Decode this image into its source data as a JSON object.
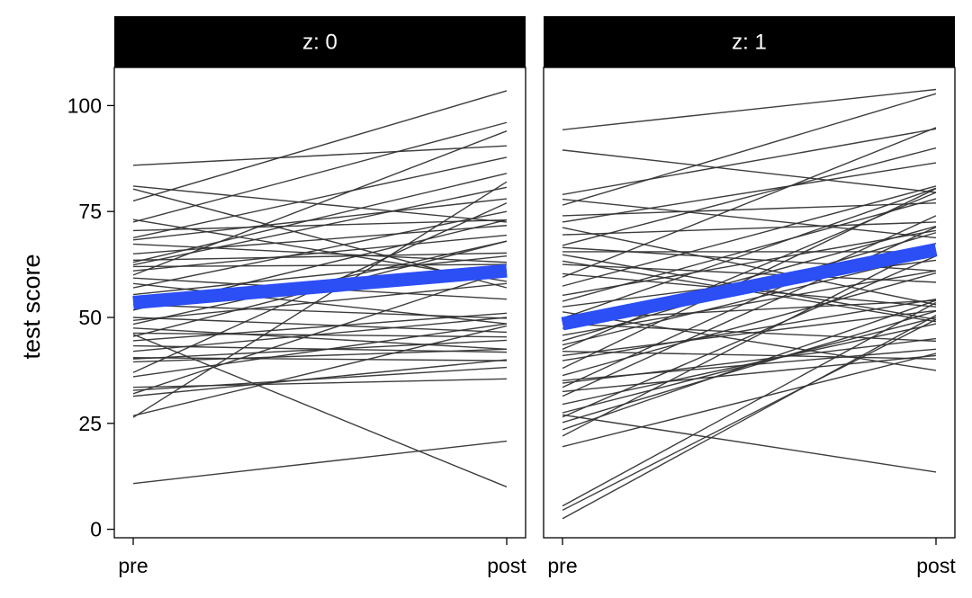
{
  "chart_data": {
    "type": "line",
    "ylabel": "test score",
    "xlabel": "",
    "x_categories": [
      "pre",
      "post"
    ],
    "ylim": [
      -2,
      109
    ],
    "yticks": [
      0,
      25,
      50,
      75,
      100
    ],
    "ytick_labels": [
      "0",
      "25",
      "50",
      "75",
      "100"
    ],
    "grid": false,
    "legend": "none",
    "colors": {
      "individual_line": "#333333",
      "mean_line": "#2B4EF5",
      "strip_bg": "#000000",
      "strip_text": "#FFFFFF"
    },
    "panels": [
      {
        "label": "z: 0",
        "mean_line": {
          "pre": 53.5,
          "post": 61
        },
        "individual_lines": [
          [
            85.9,
            90.5
          ],
          [
            81,
            72.5
          ],
          [
            80.3,
            57
          ],
          [
            77.5,
            103.5
          ],
          [
            73.1,
            58.5
          ],
          [
            72.5,
            96
          ],
          [
            70.5,
            73
          ],
          [
            68.8,
            87.8
          ],
          [
            68.3,
            78
          ],
          [
            67.3,
            63
          ],
          [
            65,
            71.7
          ],
          [
            63.5,
            65.2
          ],
          [
            63,
            84
          ],
          [
            62.4,
            80.7
          ],
          [
            62,
            62.5
          ],
          [
            61,
            69.4
          ],
          [
            60,
            94
          ],
          [
            59.3,
            54.3
          ],
          [
            58,
            48.5
          ],
          [
            57,
            75
          ],
          [
            55.4,
            64.5
          ],
          [
            54,
            60
          ],
          [
            53,
            49.8
          ],
          [
            51.7,
            73
          ],
          [
            50,
            46.5
          ],
          [
            49.3,
            58
          ],
          [
            48.4,
            68
          ],
          [
            47.5,
            42.5
          ],
          [
            46.3,
            45.4
          ],
          [
            46,
            10
          ],
          [
            45.5,
            68
          ],
          [
            44.5,
            51
          ],
          [
            43.3,
            41.8
          ],
          [
            42,
            50
          ],
          [
            40.5,
            39.8
          ],
          [
            40.2,
            44.6
          ],
          [
            39.5,
            42.5
          ],
          [
            37,
            77
          ],
          [
            36,
            48.5
          ],
          [
            33.5,
            35.5
          ],
          [
            32.8,
            38.2
          ],
          [
            32,
            61
          ],
          [
            31.4,
            40
          ],
          [
            26.8,
            48
          ],
          [
            26.4,
            82
          ],
          [
            10.8,
            20.8
          ]
        ]
      },
      {
        "label": "z: 1",
        "mean_line": {
          "pre": 48.5,
          "post": 66
        },
        "individual_lines": [
          [
            94.3,
            103.8
          ],
          [
            89.5,
            79.5
          ],
          [
            79,
            94.5
          ],
          [
            77.9,
            68.8
          ],
          [
            76.5,
            102.8
          ],
          [
            74,
            77
          ],
          [
            72.5,
            86.5
          ],
          [
            71.2,
            53
          ],
          [
            69.5,
            72.5
          ],
          [
            67,
            90
          ],
          [
            66.5,
            61
          ],
          [
            65.5,
            65.5
          ],
          [
            64.8,
            49.5
          ],
          [
            63.3,
            49
          ],
          [
            62.5,
            58.3
          ],
          [
            60.3,
            52.5
          ],
          [
            59.5,
            94.8
          ],
          [
            57.4,
            81
          ],
          [
            55.2,
            70.5
          ],
          [
            53.8,
            78
          ],
          [
            52.5,
            63.5
          ],
          [
            51.3,
            37.5
          ],
          [
            49.8,
            80.5
          ],
          [
            49.5,
            54
          ],
          [
            48.5,
            44.4
          ],
          [
            47.4,
            71.5
          ],
          [
            45.8,
            61
          ],
          [
            44.5,
            70
          ],
          [
            43.5,
            65
          ],
          [
            42.5,
            79.5
          ],
          [
            42,
            40.2
          ],
          [
            41,
            51.6
          ],
          [
            39.8,
            54.3
          ],
          [
            38,
            80.4
          ],
          [
            36.3,
            60.5
          ],
          [
            35.1,
            42.5
          ],
          [
            34.5,
            45
          ],
          [
            33.5,
            74
          ],
          [
            32.5,
            41
          ],
          [
            31.4,
            71.3
          ],
          [
            29.5,
            48.5
          ],
          [
            27.5,
            50
          ],
          [
            27,
            13.5
          ],
          [
            26.5,
            64.5
          ],
          [
            25.2,
            51.5
          ],
          [
            23.5,
            54
          ],
          [
            22,
            67.5
          ],
          [
            19.5,
            41.5
          ],
          [
            5.5,
            53.5
          ],
          [
            4.5,
            49.5
          ],
          [
            2.5,
            50.5
          ]
        ]
      }
    ]
  }
}
